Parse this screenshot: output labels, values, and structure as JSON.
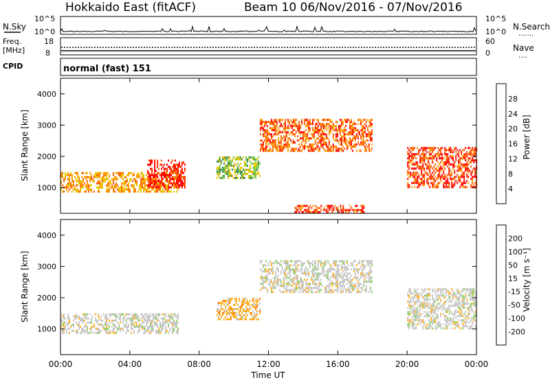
{
  "header": {
    "station": "Hokkaido East (fitACF)",
    "beam_info": "Beam 10  06/Nov/2016 - 07/Nov/2016"
  },
  "nsky_panel": {
    "label": "N.Sky",
    "left_ticks": [
      "10^5",
      "10^0"
    ],
    "right_ticks": [
      "10^5",
      "10^0"
    ],
    "right_label": "N.Search",
    "right_legend_line": "......."
  },
  "freq_panel": {
    "label_line1": "Freq.",
    "label_line2": "[MHz]",
    "left_ticks": [
      "18",
      "8"
    ],
    "right_ticks": [
      "60",
      "0"
    ],
    "right_label": "Nave",
    "right_legend_line": "...."
  },
  "cpid_panel": {
    "label": "CPID",
    "text": "normal (fast) 151"
  },
  "power_panel": {
    "ylabel": "Slant Range [km]",
    "yticks": [
      "4000",
      "3000",
      "2000",
      "1000"
    ],
    "colorbar_label": "Power [dB]",
    "colorbar_ticks": [
      "28",
      "24",
      "20",
      "16",
      "12",
      "8",
      "4"
    ],
    "colors": [
      "#0000ff",
      "#2f4aa6",
      "#3a8a5a",
      "#7ac84a",
      "#e8c800",
      "#ff9a00",
      "#ff5a00",
      "#ff0000"
    ]
  },
  "velocity_panel": {
    "ylabel": "Slant Range [km]",
    "yticks": [
      "4000",
      "3000",
      "2000",
      "1000"
    ],
    "colorbar_label": "Velocity [m s⁻¹]",
    "colorbar_ticks": [
      "200",
      "100",
      "50",
      "15",
      "-15",
      "-50",
      "-100",
      "-200"
    ],
    "colors": [
      "#2020c8",
      "#2a6e8c",
      "#3a9a3a",
      "#8ad05a",
      "#c8c8c8",
      "#ffb020",
      "#ff7000",
      "#ff3000",
      "#ff0000"
    ]
  },
  "xaxis": {
    "label": "Time UT",
    "ticks": [
      "00:00",
      "04:00",
      "08:00",
      "12:00",
      "16:00",
      "20:00",
      "00:00"
    ]
  },
  "chart_data": [
    {
      "type": "heatmap",
      "title": "Power",
      "xlabel": "Time UT",
      "ylabel": "Slant Range [km]",
      "x_range_hours": [
        0,
        24
      ],
      "ylim": [
        180,
        4500
      ],
      "color_scale": "Power [dB]",
      "color_range": [
        0,
        30
      ],
      "regions": [
        {
          "t_start": 0.0,
          "t_end": 6.8,
          "range_start": 900,
          "range_end": 1500,
          "value": 20
        },
        {
          "t_start": 5.0,
          "t_end": 7.2,
          "range_start": 1000,
          "range_end": 1900,
          "value": 28
        },
        {
          "t_start": 9.0,
          "t_end": 11.5,
          "range_start": 1300,
          "range_end": 2000,
          "value": 14
        },
        {
          "t_start": 11.5,
          "t_end": 18.0,
          "range_start": 2200,
          "range_end": 3200,
          "value": 24
        },
        {
          "t_start": 13.5,
          "t_end": 17.5,
          "range_start": 250,
          "range_end": 450,
          "value": 26
        },
        {
          "t_start": 20.0,
          "t_end": 24.0,
          "range_start": 1000,
          "range_end": 2300,
          "value": 26
        }
      ]
    },
    {
      "type": "heatmap",
      "title": "Velocity",
      "xlabel": "Time UT",
      "ylabel": "Slant Range [km]",
      "x_range_hours": [
        0,
        24
      ],
      "ylim": [
        180,
        4500
      ],
      "color_scale": "Velocity [m s⁻¹]",
      "color_range": [
        -200,
        200
      ],
      "regions": [
        {
          "t_start": 0.0,
          "t_end": 6.8,
          "range_start": 900,
          "range_end": 1500,
          "value": 0
        },
        {
          "t_start": 9.0,
          "t_end": 11.5,
          "range_start": 1300,
          "range_end": 2000,
          "value": -40
        },
        {
          "t_start": 11.5,
          "t_end": 18.0,
          "range_start": 2200,
          "range_end": 3200,
          "value": 0
        },
        {
          "t_start": 20.0,
          "t_end": 24.0,
          "range_start": 1000,
          "range_end": 2300,
          "value": 0
        }
      ]
    }
  ]
}
